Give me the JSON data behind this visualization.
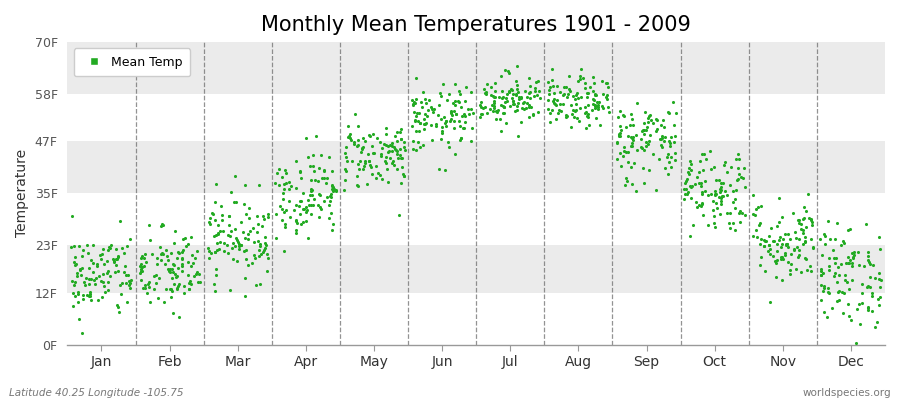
{
  "title": "Monthly Mean Temperatures 1901 - 2009",
  "ylabel": "Temperature",
  "xlabel_labels": [
    "Jan",
    "Feb",
    "Mar",
    "Apr",
    "May",
    "Jun",
    "Jul",
    "Aug",
    "Sep",
    "Oct",
    "Nov",
    "Dec"
  ],
  "yticks": [
    0,
    12,
    23,
    35,
    47,
    58,
    70
  ],
  "ytick_labels": [
    "0F",
    "12F",
    "23F",
    "35F",
    "47F",
    "58F",
    "70F"
  ],
  "ylim": [
    0,
    70
  ],
  "xlim": [
    -0.5,
    11.5
  ],
  "dot_color": "#22aa22",
  "dot_size": 5,
  "legend_label": "Mean Temp",
  "footer_left": "Latitude 40.25 Longitude -105.75",
  "footer_right": "worldspecies.org",
  "bg_color": "#ffffff",
  "hband_colors": [
    "#ffffff",
    "#ebebeb"
  ],
  "vline_color": "#666666",
  "title_fontsize": 15,
  "monthly_means": [
    16,
    17,
    25,
    35,
    44,
    52,
    57,
    56,
    47,
    36,
    24,
    16
  ],
  "monthly_stds": [
    5,
    5,
    5,
    5,
    4,
    4,
    3,
    3,
    5,
    5,
    5,
    6
  ],
  "n_years": 109,
  "seed": 42
}
